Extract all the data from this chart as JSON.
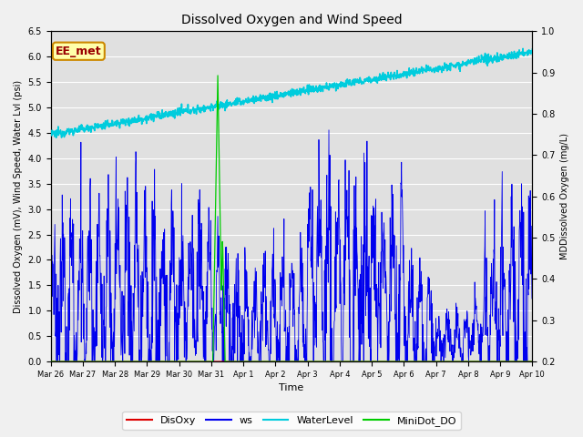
{
  "title": "Dissolved Oxygen and Wind Speed",
  "xlabel": "Time",
  "ylabel_left": "Dissolved Oxygen (mV), Wind Speed, Water Lvl (psi)",
  "ylabel_right": "MDDissolved Oxygen (mg/L)",
  "annotation": "EE_met",
  "ylim_left": [
    0.0,
    6.5
  ],
  "ylim_right": [
    0.2,
    1.0
  ],
  "xtick_labels": [
    "Mar 26",
    "Mar 27",
    "Mar 28",
    "Mar 29",
    "Mar 30",
    "Mar 31",
    "Apr 1",
    "Apr 2",
    "Apr 3",
    "Apr 4",
    "Apr 5",
    "Apr 6",
    "Apr 7",
    "Apr 8",
    "Apr 9",
    "Apr 10"
  ],
  "colors": {
    "DisOxy": "#dd0000",
    "ws": "#0000ee",
    "WaterLevel": "#00ccdd",
    "MiniDot_DO": "#00cc00"
  },
  "bg_color": "#f0f0f0",
  "plot_bg_color": "#e0e0e0"
}
